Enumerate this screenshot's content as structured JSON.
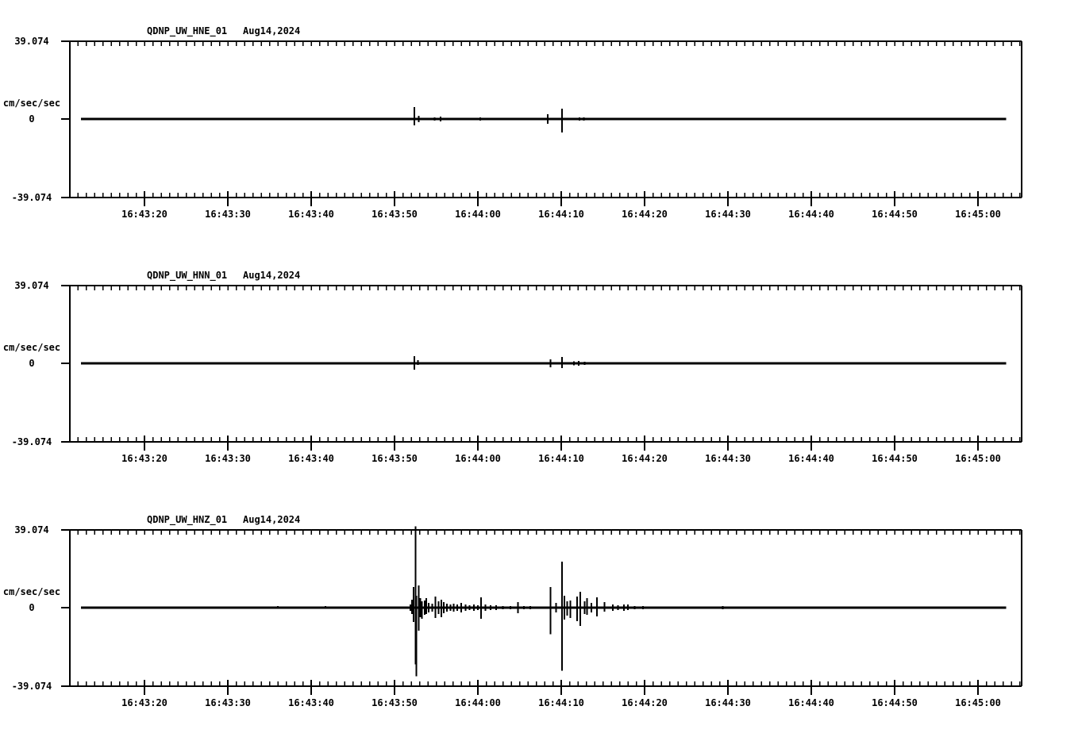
{
  "page": {
    "background": "#ffffff",
    "trace_color": "#000000",
    "station": "QDNP",
    "network": "UW",
    "date": "Aug14,2024"
  },
  "chart_data": [
    {
      "type": "line",
      "kind": "seismogram-trace",
      "station_channel": "QDNP_UW_HNE_01",
      "date": "Aug14,2024",
      "ylabel": "cm/sec/sec",
      "y_axis": {
        "max": 39.074,
        "min": -39.074,
        "max_label": "39.074",
        "zero_label": "0",
        "min_label": "-39.074",
        "unit": "cm/sec/sec"
      },
      "x_axis": {
        "tick_labels": [
          "16:43:20",
          "16:43:30",
          "16:43:40",
          "16:43:50",
          "16:44:00",
          "16:44:10",
          "16:44:20",
          "16:44:30",
          "16:44:40",
          "16:44:50",
          "16:45:00"
        ],
        "tick_seconds_after_164300": [
          20,
          30,
          40,
          50,
          60,
          70,
          80,
          90,
          100,
          110,
          120
        ],
        "minor_tick_interval_s": 1,
        "major_tick_interval_s": 10,
        "visible_range_s": [
          12,
          125
        ],
        "trace_range_s": [
          12.4,
          123.4
        ]
      },
      "spikes_t_up_down": [
        [
          52.4,
          6.0,
          3.2
        ],
        [
          52.9,
          1.6,
          1.6
        ],
        [
          54.8,
          0.8,
          0.8
        ],
        [
          55.5,
          1.2,
          1.2
        ],
        [
          60.3,
          0.8,
          0.8
        ],
        [
          68.4,
          2.4,
          2.4
        ],
        [
          70.1,
          5.2,
          6.8
        ],
        [
          71.5,
          0.6,
          0.6
        ],
        [
          72.2,
          0.8,
          0.8
        ],
        [
          72.7,
          0.8,
          0.8
        ],
        [
          73.1,
          0.6,
          0.6
        ],
        [
          74.2,
          0.6,
          0.6
        ]
      ]
    },
    {
      "type": "line",
      "kind": "seismogram-trace",
      "station_channel": "QDNP_UW_HNN_01",
      "date": "Aug14,2024",
      "ylabel": "cm/sec/sec",
      "y_axis": {
        "max": 39.074,
        "min": -39.074,
        "max_label": "39.074",
        "zero_label": "0",
        "min_label": "-39.074",
        "unit": "cm/sec/sec"
      },
      "x_axis": {
        "tick_labels": [
          "16:43:20",
          "16:43:30",
          "16:43:40",
          "16:43:50",
          "16:44:00",
          "16:44:10",
          "16:44:20",
          "16:44:30",
          "16:44:40",
          "16:44:50",
          "16:45:00"
        ],
        "tick_seconds_after_164300": [
          20,
          30,
          40,
          50,
          60,
          70,
          80,
          90,
          100,
          110,
          120
        ],
        "minor_tick_interval_s": 1,
        "major_tick_interval_s": 10,
        "visible_range_s": [
          12,
          125
        ],
        "trace_range_s": [
          12.4,
          123.4
        ]
      },
      "spikes_t_up_down": [
        [
          52.4,
          3.6,
          3.2
        ],
        [
          52.8,
          1.6,
          0.8
        ],
        [
          55.4,
          0.5,
          0.5
        ],
        [
          68.7,
          2.0,
          2.0
        ],
        [
          70.1,
          3.2,
          2.4
        ],
        [
          71.5,
          1.0,
          1.0
        ],
        [
          72.1,
          1.2,
          1.2
        ],
        [
          72.8,
          0.8,
          0.8
        ]
      ]
    },
    {
      "type": "line",
      "kind": "seismogram-trace",
      "station_channel": "QDNP_UW_HNZ_01",
      "date": "Aug14,2024",
      "ylabel": "cm/sec/sec",
      "y_axis": {
        "max": 39.074,
        "min": -39.074,
        "max_label": "39.074",
        "zero_label": "0",
        "min_label": "-39.074",
        "unit": "cm/sec/sec"
      },
      "x_axis": {
        "tick_labels": [
          "16:43:20",
          "16:43:30",
          "16:43:40",
          "16:43:50",
          "16:44:00",
          "16:44:10",
          "16:44:20",
          "16:44:30",
          "16:44:40",
          "16:44:50",
          "16:45:00"
        ],
        "tick_seconds_after_164300": [
          20,
          30,
          40,
          50,
          60,
          70,
          80,
          90,
          100,
          110,
          120
        ],
        "minor_tick_interval_s": 1,
        "major_tick_interval_s": 10,
        "visible_range_s": [
          12,
          125
        ],
        "trace_range_s": [
          12.4,
          123.4
        ]
      },
      "spikes_t_up_down": [
        [
          30.7,
          0.6,
          0.3
        ],
        [
          31.4,
          0.4,
          0.4
        ],
        [
          36.0,
          0.8,
          0.4
        ],
        [
          41.7,
          0.8,
          0.4
        ],
        [
          46.0,
          0.4,
          0.4
        ],
        [
          51.9,
          1.6,
          1.6
        ],
        [
          52.1,
          4.0,
          3.2
        ],
        [
          52.3,
          10.4,
          7.2
        ],
        [
          52.5,
          40.6,
          28.3
        ],
        [
          52.62,
          6.0,
          34.3
        ],
        [
          52.9,
          11.2,
          11.6
        ],
        [
          53.1,
          4.8,
          4.8
        ],
        [
          53.3,
          3.2,
          5.6
        ],
        [
          53.6,
          3.6,
          3.6
        ],
        [
          53.8,
          4.8,
          3.2
        ],
        [
          54.1,
          2.4,
          2.4
        ],
        [
          54.5,
          2.0,
          2.0
        ],
        [
          54.9,
          5.6,
          5.2
        ],
        [
          55.3,
          3.2,
          3.2
        ],
        [
          55.6,
          4.0,
          4.8
        ],
        [
          55.9,
          2.8,
          2.8
        ],
        [
          56.3,
          2.0,
          2.0
        ],
        [
          56.7,
          1.6,
          1.6
        ],
        [
          57.1,
          2.0,
          2.0
        ],
        [
          57.5,
          1.6,
          1.6
        ],
        [
          58.0,
          2.4,
          2.4
        ],
        [
          58.5,
          1.6,
          1.6
        ],
        [
          59.0,
          1.2,
          1.2
        ],
        [
          59.5,
          1.6,
          1.6
        ],
        [
          60.0,
          1.2,
          1.2
        ],
        [
          60.4,
          5.2,
          5.6
        ],
        [
          60.9,
          1.6,
          1.6
        ],
        [
          61.5,
          1.2,
          1.2
        ],
        [
          62.2,
          1.2,
          1.2
        ],
        [
          63.0,
          0.8,
          0.8
        ],
        [
          63.9,
          0.8,
          0.8
        ],
        [
          64.8,
          2.8,
          2.8
        ],
        [
          65.5,
          0.8,
          0.8
        ],
        [
          66.3,
          0.8,
          0.8
        ],
        [
          67.1,
          0.6,
          0.6
        ],
        [
          68.0,
          0.6,
          0.6
        ],
        [
          68.7,
          10.4,
          13.2
        ],
        [
          69.4,
          2.4,
          2.4
        ],
        [
          70.1,
          23.1,
          31.5
        ],
        [
          70.4,
          6.0,
          6.0
        ],
        [
          70.7,
          3.2,
          4.0
        ],
        [
          71.1,
          3.6,
          5.2
        ],
        [
          71.9,
          5.6,
          6.8
        ],
        [
          72.3,
          8.0,
          9.2
        ],
        [
          72.8,
          3.2,
          3.2
        ],
        [
          73.1,
          4.8,
          3.6
        ],
        [
          73.6,
          2.4,
          2.4
        ],
        [
          74.3,
          5.2,
          4.4
        ],
        [
          75.2,
          2.8,
          2.0
        ],
        [
          76.2,
          1.6,
          1.6
        ],
        [
          76.8,
          1.2,
          1.2
        ],
        [
          77.5,
          1.6,
          1.6
        ],
        [
          78.0,
          1.6,
          1.2
        ],
        [
          78.8,
          0.8,
          0.8
        ],
        [
          79.8,
          0.8,
          0.8
        ],
        [
          89.4,
          0.8,
          0.8
        ]
      ]
    }
  ]
}
